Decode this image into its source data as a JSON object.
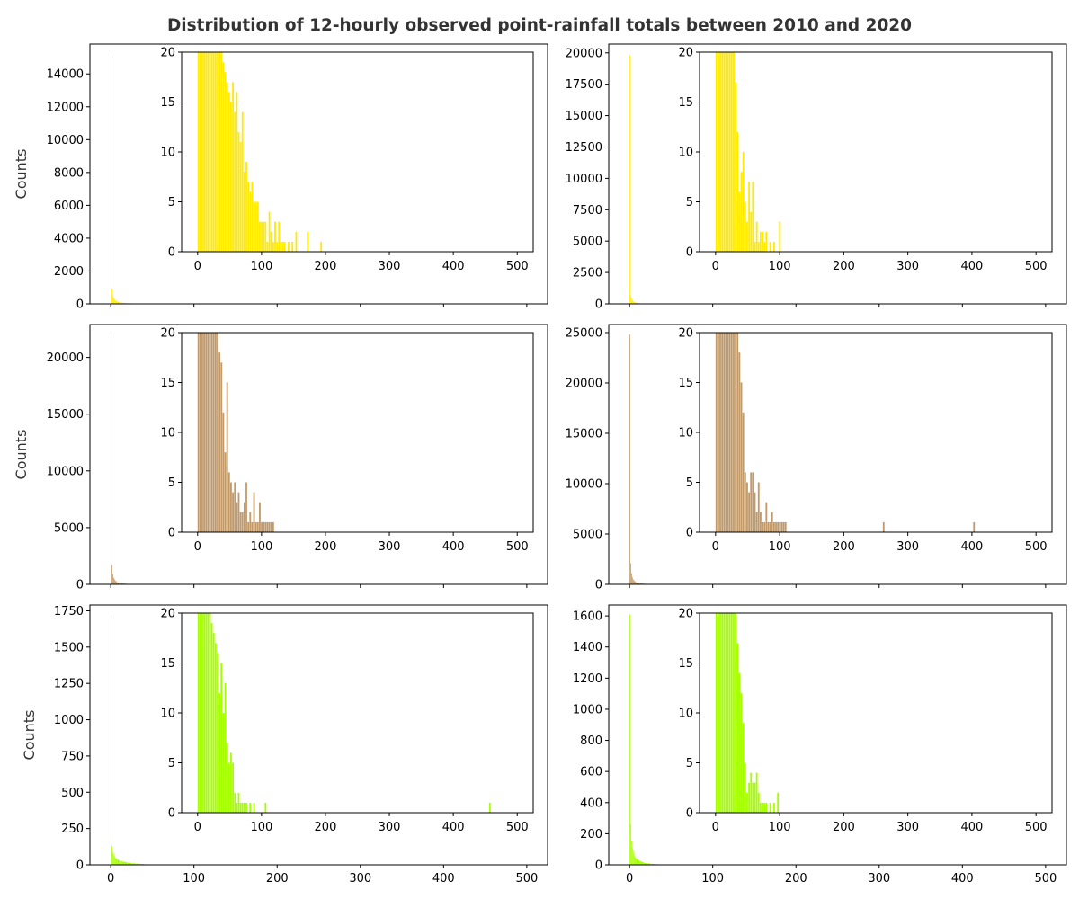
{
  "figure": {
    "title": "Distribution of 12-hourly observed point-rainfall totals between 2010 and 2020"
  },
  "chart_data": [
    {
      "type": "bar",
      "panel": "row1-left",
      "color": "#ffea00",
      "ylabel": "Counts",
      "xticks": [
        0,
        100,
        200,
        300,
        400,
        500
      ],
      "xlim": [
        -25,
        525
      ],
      "ylim": [
        0,
        15820
      ],
      "yticks": [
        0,
        2000,
        4000,
        6000,
        8000,
        10000,
        12000,
        14000
      ],
      "show_xtick_labels": false,
      "bins": [
        0,
        1,
        2,
        3,
        4,
        5,
        6,
        7,
        8,
        10,
        12,
        14,
        17,
        20,
        25,
        30
      ],
      "values": [
        15100,
        900,
        520,
        380,
        300,
        240,
        200,
        160,
        130,
        100,
        80,
        60,
        45,
        35,
        25,
        18
      ],
      "inset": {
        "xlim": [
          -25,
          525
        ],
        "ylim": [
          0,
          20
        ],
        "xticks": [
          0,
          100,
          200,
          300,
          400,
          500
        ],
        "yticks": [
          0,
          5,
          10,
          15,
          20
        ],
        "x": [
          0,
          3,
          6,
          9,
          12,
          15,
          18,
          21,
          24,
          27,
          30,
          33,
          36,
          39,
          42,
          45,
          48,
          51,
          54,
          57,
          60,
          63,
          66,
          69,
          72,
          75,
          78,
          81,
          84,
          87,
          90,
          93,
          96,
          99,
          102,
          105,
          108,
          111,
          114,
          117,
          120,
          123,
          126,
          129,
          132,
          135,
          141,
          147,
          153,
          171,
          192
        ],
        "values": [
          20,
          20,
          20,
          20,
          20,
          20,
          20,
          20,
          20,
          20,
          20,
          20,
          20,
          19,
          18,
          17,
          16,
          15,
          17,
          14,
          16,
          12,
          11,
          14,
          8,
          9,
          7,
          6,
          7,
          5,
          5,
          5,
          3,
          3,
          3,
          3,
          1,
          4,
          2,
          1,
          3,
          1,
          3,
          1,
          1,
          1,
          1,
          1,
          2,
          2,
          1
        ]
      }
    },
    {
      "type": "bar",
      "panel": "row1-right",
      "color": "#ffea00",
      "ylabel": "",
      "xticks": [
        0,
        100,
        200,
        300,
        400,
        500
      ],
      "xlim": [
        -25,
        525
      ],
      "ylim": [
        0,
        20700
      ],
      "yticks": [
        0,
        2500,
        5000,
        7500,
        10000,
        12500,
        15000,
        17500,
        20000
      ],
      "show_xtick_labels": false,
      "bins": [
        0,
        1,
        2,
        3,
        4,
        5,
        6,
        7,
        8,
        10,
        12,
        14,
        17,
        20,
        25,
        30
      ],
      "values": [
        19800,
        700,
        450,
        300,
        220,
        170,
        130,
        100,
        80,
        60,
        40,
        30,
        20,
        15,
        10,
        6
      ],
      "inset": {
        "xlim": [
          -25,
          525
        ],
        "ylim": [
          0,
          20
        ],
        "xticks": [
          0,
          100,
          200,
          300,
          400,
          500
        ],
        "yticks": [
          0,
          5,
          10,
          15,
          20
        ],
        "x": [
          0,
          3,
          6,
          9,
          12,
          15,
          18,
          21,
          24,
          27,
          30,
          33,
          36,
          39,
          42,
          45,
          48,
          51,
          54,
          57,
          60,
          63,
          66,
          69,
          72,
          75,
          78,
          84,
          90,
          99
        ],
        "values": [
          20,
          20,
          20,
          20,
          20,
          20,
          20,
          20,
          20,
          20,
          17,
          12,
          6,
          8,
          10,
          5,
          3,
          7,
          4,
          7,
          1,
          3,
          1,
          2,
          2,
          1,
          2,
          1,
          1,
          3
        ]
      }
    },
    {
      "type": "bar",
      "panel": "row2-left",
      "color": "#c19a6b",
      "ylabel": "Counts",
      "xticks": [
        0,
        100,
        200,
        300,
        400,
        500
      ],
      "xlim": [
        -25,
        525
      ],
      "ylim": [
        0,
        22900
      ],
      "yticks": [
        0,
        5000,
        10000,
        15000,
        20000
      ],
      "show_xtick_labels": false,
      "bins": [
        0,
        1,
        2,
        3,
        4,
        5,
        6,
        7,
        8,
        10,
        12,
        14,
        17,
        20,
        25,
        30
      ],
      "values": [
        21900,
        1700,
        900,
        600,
        450,
        340,
        260,
        200,
        160,
        120,
        90,
        70,
        50,
        35,
        25,
        15
      ],
      "inset": {
        "xlim": [
          -25,
          525
        ],
        "ylim": [
          0,
          20
        ],
        "xticks": [
          0,
          100,
          200,
          300,
          400,
          500
        ],
        "yticks": [
          0,
          5,
          10,
          15,
          20
        ],
        "x": [
          0,
          3,
          6,
          9,
          12,
          15,
          18,
          21,
          24,
          27,
          30,
          33,
          36,
          39,
          42,
          45,
          48,
          51,
          54,
          57,
          60,
          63,
          66,
          69,
          72,
          75,
          78,
          81,
          84,
          87,
          90,
          93,
          96,
          99,
          102,
          105,
          108,
          111,
          114,
          117
        ],
        "values": [
          20,
          20,
          20,
          20,
          20,
          20,
          20,
          20,
          20,
          20,
          20,
          18,
          17,
          12,
          8,
          15,
          6,
          5,
          4,
          5,
          3,
          4,
          2,
          2,
          3,
          5,
          1,
          2,
          1,
          4,
          1,
          1,
          3,
          1,
          1,
          1,
          1,
          1,
          1,
          1
        ]
      }
    },
    {
      "type": "bar",
      "panel": "row2-right",
      "color": "#c19a6b",
      "ylabel": "",
      "xticks": [
        0,
        100,
        200,
        300,
        400,
        500
      ],
      "xlim": [
        -25,
        525
      ],
      "ylim": [
        0,
        25800
      ],
      "yticks": [
        0,
        5000,
        10000,
        15000,
        20000,
        25000
      ],
      "show_xtick_labels": false,
      "bins": [
        0,
        1,
        2,
        3,
        4,
        5,
        6,
        7,
        8,
        10,
        12,
        14,
        17,
        20,
        25,
        30
      ],
      "values": [
        24800,
        2100,
        1100,
        700,
        500,
        380,
        300,
        230,
        180,
        140,
        100,
        80,
        60,
        40,
        28,
        18
      ],
      "inset": {
        "xlim": [
          -25,
          525
        ],
        "ylim": [
          0,
          20
        ],
        "xticks": [
          0,
          100,
          200,
          300,
          400,
          500
        ],
        "yticks": [
          0,
          5,
          10,
          15,
          20
        ],
        "x": [
          0,
          3,
          6,
          9,
          12,
          15,
          18,
          21,
          24,
          27,
          30,
          33,
          36,
          39,
          42,
          45,
          48,
          51,
          54,
          57,
          60,
          63,
          66,
          69,
          72,
          75,
          78,
          81,
          84,
          87,
          90,
          93,
          96,
          99,
          102,
          105,
          108,
          261,
          402
        ],
        "values": [
          20,
          20,
          20,
          20,
          20,
          20,
          20,
          20,
          20,
          20,
          20,
          20,
          18,
          15,
          12,
          6,
          5,
          4,
          6,
          6,
          4,
          2,
          5,
          2,
          1,
          1,
          3,
          1,
          1,
          2,
          1,
          1,
          1,
          1,
          1,
          1,
          1,
          1,
          1
        ]
      }
    },
    {
      "type": "bar",
      "panel": "row3-left",
      "color": "#a6ff00",
      "ylabel": "Counts",
      "xticks": [
        0,
        100,
        200,
        300,
        400,
        500
      ],
      "xlim": [
        -25,
        525
      ],
      "ylim": [
        0,
        1790
      ],
      "yticks": [
        0,
        250,
        500,
        750,
        1000,
        1250,
        1500,
        1750
      ],
      "show_xtick_labels": true,
      "bins": [
        0,
        1,
        2,
        3,
        4,
        5,
        6,
        7,
        8,
        10,
        12,
        14,
        17,
        20,
        25,
        30,
        35,
        40,
        45
      ],
      "values": [
        1720,
        130,
        90,
        75,
        60,
        50,
        45,
        40,
        35,
        30,
        26,
        22,
        18,
        14,
        10,
        8,
        6,
        4,
        3
      ],
      "inset": {
        "xlim": [
          -25,
          525
        ],
        "ylim": [
          0,
          20
        ],
        "xticks": [
          0,
          100,
          200,
          300,
          400,
          500
        ],
        "yticks": [
          0,
          5,
          10,
          15,
          20
        ],
        "x": [
          0,
          3,
          6,
          9,
          12,
          15,
          18,
          21,
          24,
          27,
          30,
          33,
          36,
          39,
          42,
          45,
          48,
          51,
          54,
          57,
          60,
          63,
          66,
          69,
          72,
          75,
          81,
          87,
          105,
          456
        ],
        "values": [
          20,
          20,
          20,
          20,
          20,
          20,
          20,
          19,
          18,
          17,
          16,
          12,
          15,
          10,
          13,
          7,
          5,
          6,
          5,
          2,
          1,
          2,
          1,
          1,
          1,
          1,
          1,
          1,
          1,
          1
        ]
      }
    },
    {
      "type": "bar",
      "panel": "row3-right",
      "color": "#a6ff00",
      "ylabel": "",
      "xticks": [
        0,
        100,
        200,
        300,
        400,
        500
      ],
      "xlim": [
        -25,
        525
      ],
      "ylim": [
        0,
        1670
      ],
      "yticks": [
        0,
        200,
        400,
        600,
        800,
        1000,
        1200,
        1400,
        1600
      ],
      "show_xtick_labels": true,
      "bins": [
        0,
        1,
        2,
        3,
        4,
        5,
        6,
        7,
        8,
        10,
        12,
        14,
        17,
        20,
        25,
        30,
        35
      ],
      "values": [
        1610,
        260,
        150,
        110,
        90,
        70,
        55,
        45,
        38,
        30,
        24,
        18,
        13,
        9,
        6,
        4,
        2
      ],
      "inset": {
        "xlim": [
          -25,
          525
        ],
        "ylim": [
          0,
          20
        ],
        "xticks": [
          0,
          100,
          200,
          300,
          400,
          500
        ],
        "yticks": [
          0,
          5,
          10,
          15,
          20
        ],
        "x": [
          0,
          3,
          6,
          9,
          12,
          15,
          18,
          21,
          24,
          27,
          30,
          33,
          36,
          39,
          42,
          45,
          48,
          51,
          54,
          57,
          60,
          63,
          66,
          69,
          72,
          75,
          78,
          84,
          90,
          96
        ],
        "values": [
          20,
          20,
          20,
          20,
          20,
          20,
          20,
          20,
          20,
          20,
          20,
          17,
          14,
          12,
          9,
          5,
          2,
          3,
          4,
          3,
          3,
          4,
          2,
          1,
          1,
          1,
          1,
          1,
          1,
          2
        ]
      }
    }
  ]
}
